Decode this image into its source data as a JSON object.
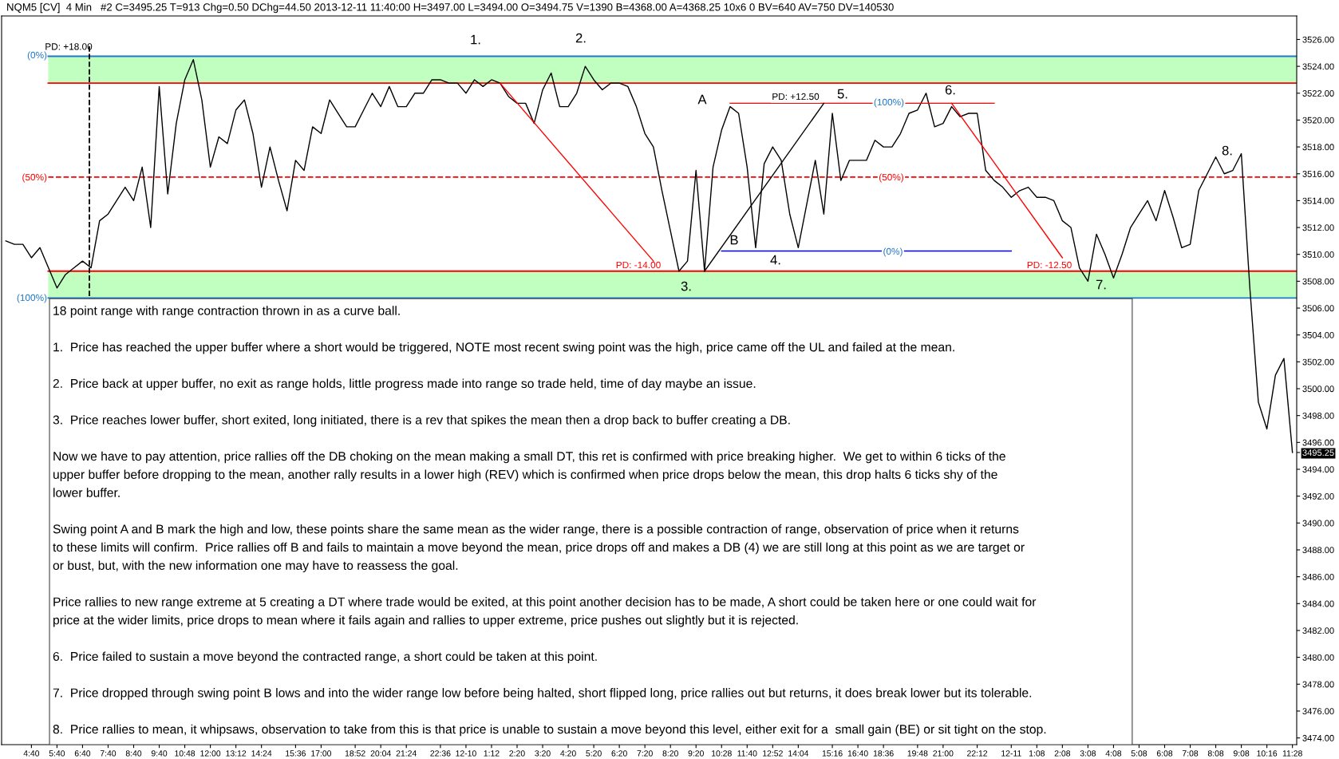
{
  "chart_data": {
    "type": "line",
    "title": "NQM5 [CV]  4 Min   #2 C=3495.25 T=913 Chg=0.50 DChg=44.50 2013-12-11 11:40:00 H=3497.00 L=3494.00 O=3494.75 V=1390 B=4368.00 A=4368.25 10x6 0 BV=640 AV=750 DV=140530",
    "categories": [
      null,
      null,
      null,
      "4:40",
      null,
      null,
      "5:40",
      null,
      null,
      "6:40",
      null,
      null,
      "7:40",
      null,
      null,
      "8:40",
      null,
      null,
      "9:40",
      null,
      null,
      "10:48",
      null,
      null,
      "12:00",
      null,
      null,
      "13:12",
      null,
      null,
      "14:24",
      null,
      null,
      null,
      "15:36",
      null,
      null,
      "17:00",
      null,
      null,
      null,
      "18:52",
      null,
      null,
      "20:04",
      null,
      null,
      "21:24",
      null,
      null,
      null,
      "22:36",
      null,
      null,
      "12-10",
      null,
      null,
      "1:12",
      null,
      null,
      "2:20",
      null,
      null,
      "3:20",
      null,
      null,
      "4:20",
      null,
      null,
      "5:20",
      null,
      null,
      "6:20",
      null,
      null,
      "7:20",
      null,
      null,
      "8:20",
      null,
      null,
      "9:20",
      null,
      null,
      "10:28",
      null,
      null,
      "11:40",
      null,
      null,
      "12:52",
      null,
      null,
      "14:04",
      null,
      null,
      null,
      "15:16",
      null,
      null,
      "16:40",
      null,
      null,
      "18:36",
      null,
      null,
      null,
      "19:48",
      null,
      null,
      "21:00",
      null,
      null,
      null,
      "22:12",
      null,
      null,
      null,
      "12-11",
      null,
      null,
      "1:08",
      null,
      null,
      "2:08",
      null,
      null,
      "3:08",
      null,
      null,
      "4:08",
      null,
      null,
      "5:08",
      null,
      null,
      "6:08",
      null,
      null,
      "7:08",
      null,
      null,
      "8:08",
      null,
      null,
      "9:08",
      null,
      null,
      "10:16",
      null,
      null,
      "11:28"
    ],
    "ylim": [
      3473.5,
      3527.75
    ],
    "yticks": [
      {
        "value": 3474,
        "label": "3474.00"
      },
      {
        "value": 3476,
        "label": "3476.00"
      },
      {
        "value": 3478,
        "label": "3478.00"
      },
      {
        "value": 3480,
        "label": "3480.00"
      },
      {
        "value": 3482,
        "label": "3482.00"
      },
      {
        "value": 3484,
        "label": "3484.00"
      },
      {
        "value": 3486,
        "label": "3486.00"
      },
      {
        "value": 3488,
        "label": "3488.00"
      },
      {
        "value": 3490,
        "label": "3490.00"
      },
      {
        "value": 3492,
        "label": "3492.00"
      },
      {
        "value": 3494,
        "label": "3494.00"
      },
      {
        "value": 3495.25,
        "label": "3495.25"
      },
      {
        "value": 3496,
        "label": "3496.00"
      },
      {
        "value": 3498,
        "label": "3498.00"
      },
      {
        "value": 3500,
        "label": "3500.00"
      },
      {
        "value": 3502,
        "label": "3502.00"
      },
      {
        "value": 3504,
        "label": "3504.00"
      },
      {
        "value": 3506,
        "label": "3506.00"
      },
      {
        "value": 3508,
        "label": "3508.00"
      },
      {
        "value": 3510,
        "label": "3510.00"
      },
      {
        "value": 3512,
        "label": "3512.00"
      },
      {
        "value": 3514,
        "label": "3514.00"
      },
      {
        "value": 3516,
        "label": "3516.00"
      },
      {
        "value": 3518,
        "label": "3518.00"
      },
      {
        "value": 3520,
        "label": "3520.00"
      },
      {
        "value": 3522,
        "label": "3522.00"
      },
      {
        "value": 3524,
        "label": "3524.00"
      },
      {
        "value": 3526,
        "label": "3526.00"
      }
    ],
    "series": [
      {
        "color": "#000000",
        "values": [
          3511,
          3510.75,
          3510.75,
          3509.75,
          3510.5,
          3509,
          3507.5,
          3508.5,
          3509,
          3509.5,
          3509,
          3512.5,
          3513,
          3514,
          3515,
          3514,
          3516.5,
          3512,
          3522.5,
          3514.5,
          3519.75,
          3523,
          3524.5,
          3521.5,
          3516.5,
          3518.75,
          3518.25,
          3520.75,
          3521.5,
          3519,
          3515,
          3518,
          3515.5,
          3513.25,
          3517,
          3516.25,
          3519.5,
          3519,
          3521.5,
          3520.5,
          3519.5,
          3519.5,
          3520.75,
          3522,
          3521,
          3522.5,
          3521,
          3521,
          3522,
          3522,
          3523,
          3523,
          3522.75,
          3522.75,
          3522,
          3523,
          3522.5,
          3523,
          3522.75,
          3521.75,
          3521.25,
          3521.25,
          3519.75,
          3522.25,
          3523.5,
          3521,
          3521,
          3522,
          3524,
          3523,
          3522.25,
          3522.75,
          3522.75,
          3522.5,
          3521,
          3519,
          3518,
          3514.75,
          3511.75,
          3508.75,
          3509.5,
          3516.25,
          3508.75,
          3516.5,
          3519.25,
          3521,
          3520.5,
          3516.5,
          3510.5,
          3516.75,
          3518,
          3517,
          3513,
          3510.5,
          3513.75,
          3517,
          3513,
          3520.5,
          3515.5,
          3517,
          3517,
          3517,
          3518.5,
          3518,
          3518,
          3519,
          3520.5,
          3520.75,
          3522,
          3519.5,
          3519.75,
          3521,
          3520.25,
          3520.5,
          3520.5,
          3516.25,
          3515.5,
          3515,
          3514.25,
          3514.75,
          3515,
          3514.25,
          3514.25,
          3514,
          3512.5,
          3512,
          3509,
          3508,
          3511.5,
          3510,
          3508.25,
          3510,
          3512,
          3513,
          3514,
          3512.5,
          3514.75,
          3512.75,
          3510.5,
          3510.75,
          3514.75,
          3516,
          3517.25,
          3516,
          3516.25,
          3517.5,
          3507.5,
          3499,
          3497,
          3501,
          3502.25,
          3495.25
        ]
      },
      {
        "type": "line",
        "color": "#ff0000",
        "values": [
          null,
          null,
          null,
          null,
          null,
          null,
          null,
          null,
          null,
          null,
          null,
          null,
          null,
          null,
          null,
          null,
          null,
          null,
          null,
          null,
          null,
          null,
          null,
          null,
          null,
          null,
          null,
          null,
          null,
          null,
          null,
          null,
          null,
          null,
          null,
          null,
          null,
          null,
          null,
          null,
          null,
          null,
          null,
          null,
          null,
          null,
          null,
          null,
          null,
          null,
          null,
          null,
          null,
          null,
          null,
          null,
          null,
          null,
          3522.75,
          null,
          null,
          null,
          null,
          null,
          null,
          null,
          null,
          null,
          null,
          null,
          null,
          null,
          null,
          null,
          null,
          null,
          3509.5,
          null,
          null,
          null,
          null,
          null,
          null,
          null,
          null,
          null,
          null,
          null,
          null,
          null,
          null,
          null,
          null,
          null,
          null,
          null,
          null,
          null,
          null,
          null,
          null,
          null,
          null,
          null,
          null,
          null,
          null,
          null,
          null,
          null,
          null,
          null,
          null,
          null,
          null,
          null,
          null,
          null,
          null,
          null,
          null,
          null,
          null,
          null,
          null,
          null,
          null,
          null,
          null,
          null,
          null,
          null,
          null,
          null,
          null,
          null,
          null,
          null,
          null,
          null,
          null,
          null,
          null,
          null,
          null,
          null,
          null,
          null,
          null,
          null,
          null,
          null
        ]
      },
      {
        "type": "line",
        "color": "#ff0000",
        "values": [
          null,
          null,
          null,
          null,
          null,
          null,
          null,
          null,
          null,
          null,
          null,
          null,
          null,
          null,
          null,
          null,
          null,
          null,
          null,
          null,
          null,
          null,
          null,
          null,
          null,
          null,
          null,
          null,
          null,
          null,
          null,
          null,
          null,
          null,
          null,
          null,
          null,
          null,
          null,
          null,
          null,
          null,
          null,
          null,
          null,
          null,
          null,
          null,
          null,
          null,
          null,
          null,
          null,
          null,
          null,
          null,
          null,
          null,
          null,
          null,
          null,
          null,
          null,
          null,
          null,
          null,
          null,
          null,
          null,
          null,
          null,
          null,
          null,
          null,
          null,
          null,
          null,
          null,
          null,
          null,
          null,
          null,
          null,
          null,
          null,
          3521.25,
          null,
          null,
          null,
          null,
          null,
          null,
          null,
          null,
          null,
          null,
          null,
          null,
          null,
          null,
          null,
          null,
          null,
          null,
          null,
          null,
          null,
          null,
          null,
          null,
          null,
          null,
          null,
          null,
          null,
          null,
          3521.25,
          null,
          null,
          null,
          null,
          null,
          null,
          null,
          null,
          null,
          null,
          null,
          null,
          null,
          null,
          null,
          null,
          null,
          null,
          null,
          null,
          null,
          null,
          null,
          null,
          null,
          null,
          null,
          null,
          null,
          null,
          null,
          null,
          null,
          null,
          null
        ]
      },
      {
        "type": "line",
        "color": "#000000",
        "values": [
          null,
          null,
          null,
          null,
          null,
          null,
          null,
          null,
          null,
          null,
          null,
          null,
          null,
          null,
          null,
          null,
          null,
          null,
          null,
          null,
          null,
          null,
          null,
          null,
          null,
          null,
          null,
          null,
          null,
          null,
          null,
          null,
          null,
          null,
          null,
          null,
          null,
          null,
          null,
          null,
          null,
          null,
          null,
          null,
          null,
          null,
          null,
          null,
          null,
          null,
          null,
          null,
          null,
          null,
          null,
          null,
          null,
          null,
          null,
          null,
          null,
          null,
          null,
          null,
          null,
          null,
          null,
          null,
          null,
          null,
          null,
          null,
          null,
          null,
          null,
          null,
          null,
          null,
          null,
          null,
          null,
          null,
          3508.75,
          null,
          null,
          null,
          null,
          null,
          null,
          null,
          null,
          null,
          null,
          null,
          null,
          null,
          3521.25,
          null,
          null,
          null,
          null,
          null,
          null,
          null,
          null,
          null,
          null,
          null,
          null,
          null,
          null,
          null,
          null,
          null,
          null,
          null,
          null,
          null,
          null,
          null,
          null,
          null,
          null,
          null,
          null,
          null,
          null,
          null,
          null,
          null,
          null,
          null,
          null,
          null,
          null,
          null,
          null,
          null,
          null,
          null,
          null,
          null,
          null,
          null,
          null,
          null,
          null,
          null,
          null,
          null,
          null,
          null
        ]
      },
      {
        "type": "line",
        "color": "#0000ff",
        "values": [
          null,
          null,
          null,
          null,
          null,
          null,
          null,
          null,
          null,
          null,
          null,
          null,
          null,
          null,
          null,
          null,
          null,
          null,
          null,
          null,
          null,
          null,
          null,
          null,
          null,
          null,
          null,
          null,
          null,
          null,
          null,
          null,
          null,
          null,
          null,
          null,
          null,
          null,
          null,
          null,
          null,
          null,
          null,
          null,
          null,
          null,
          null,
          null,
          null,
          null,
          null,
          null,
          null,
          null,
          null,
          null,
          null,
          null,
          null,
          null,
          null,
          null,
          null,
          null,
          null,
          null,
          null,
          null,
          null,
          null,
          null,
          null,
          null,
          null,
          null,
          null,
          null,
          null,
          null,
          null,
          null,
          null,
          null,
          null,
          3510.25,
          null,
          null,
          null,
          null,
          null,
          null,
          null,
          null,
          null,
          null,
          null,
          null,
          null,
          null,
          null,
          null,
          null,
          null,
          null,
          null,
          null,
          null,
          null,
          null,
          null,
          null,
          null,
          null,
          null,
          null,
          null,
          null,
          null,
          3510.25,
          null,
          null,
          null,
          null,
          null,
          null,
          null,
          null,
          null,
          null,
          null,
          null,
          null,
          null,
          null,
          null,
          null,
          null,
          null,
          null,
          null,
          null,
          null,
          null,
          null,
          null,
          null,
          null,
          null,
          null,
          null,
          null,
          null
        ]
      },
      {
        "type": "line",
        "color": "#ff0000",
        "values": [
          null,
          null,
          null,
          null,
          null,
          null,
          null,
          null,
          null,
          null,
          null,
          null,
          null,
          null,
          null,
          null,
          null,
          null,
          null,
          null,
          null,
          null,
          null,
          null,
          null,
          null,
          null,
          null,
          null,
          null,
          null,
          null,
          null,
          null,
          null,
          null,
          null,
          null,
          null,
          null,
          null,
          null,
          null,
          null,
          null,
          null,
          null,
          null,
          null,
          null,
          null,
          null,
          null,
          null,
          null,
          null,
          null,
          null,
          null,
          null,
          null,
          null,
          null,
          null,
          null,
          null,
          null,
          null,
          null,
          null,
          null,
          null,
          null,
          null,
          null,
          null,
          null,
          null,
          null,
          null,
          null,
          null,
          null,
          null,
          null,
          null,
          null,
          null,
          null,
          null,
          null,
          null,
          null,
          null,
          null,
          null,
          null,
          null,
          null,
          null,
          null,
          null,
          null,
          null,
          null,
          null,
          null,
          null,
          null,
          null,
          null,
          3521.25,
          null,
          null,
          null,
          null,
          null,
          null,
          null,
          null,
          null,
          null,
          null,
          null,
          3509.75,
          null,
          null,
          null,
          null,
          null,
          null,
          null,
          null,
          null,
          null,
          null,
          null,
          null,
          null,
          null,
          null,
          null,
          null,
          null,
          null,
          null,
          null,
          null,
          null,
          null,
          null,
          null
        ]
      }
    ],
    "bands": [
      {
        "axis": "y",
        "from": 3522.75,
        "to": 3524.75,
        "color": "#c0ffc0"
      },
      {
        "axis": "y",
        "from": 3506.75,
        "to": 3508.75,
        "color": "#c0ffc0"
      }
    ],
    "ref_lines": [
      {
        "axis": "y",
        "value": 3524.75,
        "color": "#1e78c8",
        "line_style": "solid"
      },
      {
        "axis": "y",
        "value": 3522.75,
        "color": "#ff0000",
        "line_style": "solid"
      },
      {
        "axis": "y",
        "value": 3515.75,
        "color": "#ff0000",
        "line_style": "dashed"
      },
      {
        "axis": "y",
        "value": 3508.75,
        "color": "#ff0000",
        "line_style": "solid"
      },
      {
        "axis": "y",
        "value": 3506.75,
        "color": "#1e78c8",
        "line_style": "solid"
      }
    ],
    "annotations": [
      {
        "text": "PD: +18.00",
        "y": 3524.75
      },
      "1.",
      "2.",
      "A",
      "B",
      "3.",
      "4.",
      "5.",
      "6.",
      "7.",
      "8.",
      "PD: +12.50",
      "PD: -14.00",
      "PD: -12.50",
      "(100%)",
      "(50%)",
      "(0%)",
      "(0%)",
      "(50%)",
      "(100%)",
      "18 point range with range contraction thrown in as a curve ball.",
      "1.  Price has reached the upper buffer where a short would be triggered, NOTE most recent swing point was the high, price came off the UL and failed at the mean.",
      "2.  Price back at upper buffer, no exit as range holds, little progress made into range so trade held, time of day maybe an issue.",
      "3.  Price reaches lower buffer, short exited, long initiated, there is a rev that spikes the mean then a drop back to buffer creating a DB.",
      "Now we have to pay attention, price rallies off the DB choking on the mean making a small DT, this ret is confirmed with price breaking higher.  We get to within 6 ticks of the\nupper buffer before dropping to the mean, another rally results in a lower high (REV) which is confirmed when price drops below the mean, this drop halts 6 ticks shy of the\nlower buffer.",
      "Swing point A and B mark the high and low, these points share the same mean as the wider range, there is a possible contraction of range, observation of price when it returns\nto these limits will confirm.  Price rallies off B and fails to maintain a move beyond the mean, price drops off and makes a DB (4) we are still long at this point as we are target or\nor bust, but, with the new information one may have to reassess the goal.",
      "Price rallies to new range extreme at 5 creating a DT where trade would be exited, at this point another decision has to be made, A short could be taken here or one could wait for\nprice at the wider limits, price drops to mean where it fails again and rallies to upper extreme, price pushes out slightly but it is rejected.",
      "6.  Price failed to sustain a move beyond the contracted range, a short could be taken at this point.",
      "7.  Price dropped through swing point B lows and into the wider range low before being halted, short flipped long, price rallies out but returns, it does break lower but its tolerable.",
      "8.  Price rallies to mean, it whipsaws, observation to take from this is that price is unable to sustain a move beyond this level, either exit for a  small gain (BE) or sit tight on the stop."
    ]
  }
}
